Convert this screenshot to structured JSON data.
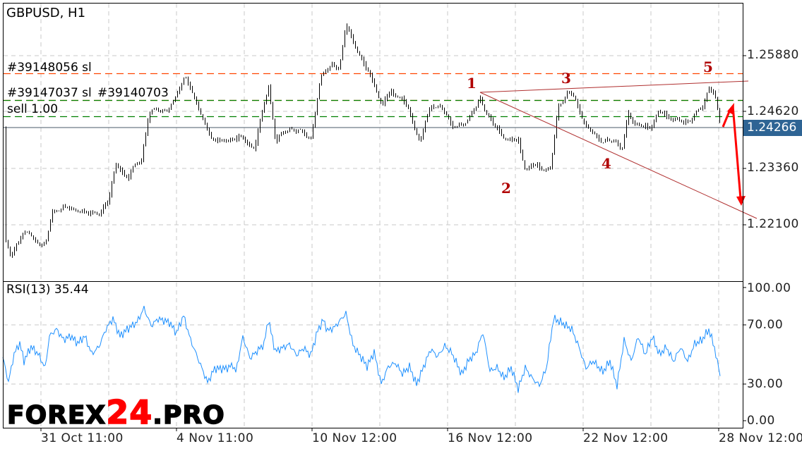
{
  "chart_data": [
    {
      "type": "candlestick",
      "title": "GBPUSD, H1",
      "symbol": "GBPUSD",
      "timeframe": "H1",
      "ylim": [
        1.21,
        1.27
      ],
      "y_ticks": [
        "1.25880",
        "1.24620",
        "1.23360",
        "1.22100"
      ],
      "x_ticks": [
        "31 Oct 11:00",
        "4 Nov 11:00",
        "10 Nov 12:00",
        "16 Nov 12:00",
        "22 Nov 12:00",
        "28 Nov 12:00"
      ],
      "current_price": "1.24266",
      "grid": true,
      "close_path": [
        [
          2,
          1.2169
        ],
        [
          5,
          1.2138
        ],
        [
          13,
          1.2193
        ],
        [
          20,
          1.2185
        ],
        [
          30,
          1.2162
        ],
        [
          35,
          1.224
        ],
        [
          43,
          1.2248
        ],
        [
          53,
          1.224
        ],
        [
          68,
          1.2232
        ],
        [
          75,
          1.2271
        ],
        [
          80,
          1.2342
        ],
        [
          88,
          1.2318
        ],
        [
          98,
          1.2357
        ],
        [
          103,
          1.2459
        ],
        [
          113,
          1.2467
        ],
        [
          120,
          1.2475
        ],
        [
          129,
          1.2545
        ],
        [
          135,
          1.249
        ],
        [
          143,
          1.2435
        ],
        [
          148,
          1.2396
        ],
        [
          158,
          1.2396
        ],
        [
          168,
          1.2404
        ],
        [
          178,
          1.2381
        ],
        [
          188,
          1.2522
        ],
        [
          193,
          1.2396
        ],
        [
          203,
          1.2428
        ],
        [
          218,
          1.2404
        ],
        [
          225,
          1.2537
        ],
        [
          233,
          1.2568
        ],
        [
          238,
          1.2553
        ],
        [
          243,
          1.2655
        ],
        [
          248,
          1.2615
        ],
        [
          255,
          1.2568
        ],
        [
          263,
          1.2522
        ],
        [
          268,
          1.2475
        ],
        [
          275,
          1.2506
        ],
        [
          283,
          1.249
        ],
        [
          290,
          1.2443
        ],
        [
          295,
          1.2396
        ],
        [
          303,
          1.2475
        ],
        [
          310,
          1.2475
        ],
        [
          318,
          1.2428
        ],
        [
          328,
          1.2435
        ],
        [
          338,
          1.249
        ],
        [
          343,
          1.2451
        ],
        [
          348,
          1.2428
        ],
        [
          358,
          1.2396
        ],
        [
          365,
          1.2396
        ],
        [
          370,
          1.2334
        ],
        [
          378,
          1.2342
        ],
        [
          388,
          1.2334
        ],
        [
          393,
          1.2475
        ],
        [
          400,
          1.2506
        ],
        [
          405,
          1.249
        ],
        [
          413,
          1.2428
        ],
        [
          423,
          1.2396
        ],
        [
          433,
          1.2396
        ],
        [
          438,
          1.2373
        ],
        [
          443,
          1.2459
        ],
        [
          448,
          1.2428
        ],
        [
          458,
          1.2428
        ],
        [
          465,
          1.2459
        ],
        [
          473,
          1.2451
        ],
        [
          480,
          1.2435
        ],
        [
          488,
          1.2451
        ],
        [
          495,
          1.2467
        ],
        [
          500,
          1.2522
        ],
        [
          504,
          1.2498
        ],
        [
          508,
          1.24266
        ]
      ],
      "orders": [
        {
          "label": "#39148056 sl",
          "price": 1.2546,
          "color": "#ff4500",
          "style": "dashed"
        },
        {
          "label": "#39147037 sl",
          "overlap_label": "#39140703",
          "price": 1.2487,
          "color": "#ff4500",
          "style": "dashed"
        },
        {
          "label": "",
          "price": 1.2487,
          "color": "#008000",
          "style": "dashed"
        },
        {
          "label": "sell 1.00",
          "price": 1.2451,
          "color": "#008000",
          "style": "dashed"
        }
      ],
      "wave_labels": [
        "1",
        "2",
        "3",
        "4",
        "5"
      ],
      "wave_color": "#b00000",
      "arrow_color": "#ff0000"
    },
    {
      "type": "line",
      "title": "RSI(13) 35.44",
      "indicator": "RSI",
      "period": 13,
      "last_value": "35.44",
      "ylim": [
        0,
        100
      ],
      "y_ticks": [
        "100.00",
        "70.00",
        "30.00",
        "0.00"
      ],
      "levels": [
        70,
        30
      ],
      "color": "#1e90ff",
      "values": [
        [
          0,
          46.7
        ],
        [
          4,
          30
        ],
        [
          8,
          49
        ],
        [
          12,
          56.2
        ],
        [
          15,
          44.3
        ],
        [
          20,
          53.8
        ],
        [
          25,
          49
        ],
        [
          30,
          39.5
        ],
        [
          33,
          61
        ],
        [
          38,
          65.7
        ],
        [
          43,
          58.6
        ],
        [
          48,
          61
        ],
        [
          53,
          56.2
        ],
        [
          58,
          61
        ],
        [
          63,
          49
        ],
        [
          68,
          53.8
        ],
        [
          73,
          65.7
        ],
        [
          78,
          72.9
        ],
        [
          83,
          61
        ],
        [
          88,
          65.7
        ],
        [
          95,
          70.5
        ],
        [
          100,
          80
        ],
        [
          105,
          68.1
        ],
        [
          110,
          72.9
        ],
        [
          118,
          70.5
        ],
        [
          123,
          63.3
        ],
        [
          128,
          75.2
        ],
        [
          133,
          58.6
        ],
        [
          138,
          46.7
        ],
        [
          145,
          30
        ],
        [
          150,
          39.5
        ],
        [
          158,
          39.5
        ],
        [
          163,
          41.9
        ],
        [
          165,
          37.1
        ],
        [
          170,
          61
        ],
        [
          175,
          46.7
        ],
        [
          180,
          51.4
        ],
        [
          185,
          56.2
        ],
        [
          188,
          72.9
        ],
        [
          193,
          51.4
        ],
        [
          198,
          53.8
        ],
        [
          203,
          56.2
        ],
        [
          208,
          49
        ],
        [
          213,
          53.8
        ],
        [
          218,
          49
        ],
        [
          223,
          65.7
        ],
        [
          227,
          72.9
        ],
        [
          230,
          65.7
        ],
        [
          235,
          68.1
        ],
        [
          243,
          77.6
        ],
        [
          248,
          56.2
        ],
        [
          253,
          49
        ],
        [
          258,
          41.9
        ],
        [
          263,
          51.4
        ],
        [
          268,
          30
        ],
        [
          273,
          41.9
        ],
        [
          278,
          44.3
        ],
        [
          283,
          37.1
        ],
        [
          288,
          41.9
        ],
        [
          293,
          30
        ],
        [
          298,
          41.9
        ],
        [
          303,
          53.8
        ],
        [
          308,
          49
        ],
        [
          313,
          56.2
        ],
        [
          318,
          51.4
        ],
        [
          325,
          37.1
        ],
        [
          330,
          46.7
        ],
        [
          335,
          51.4
        ],
        [
          340,
          65.7
        ],
        [
          345,
          39.5
        ],
        [
          350,
          41.9
        ],
        [
          355,
          34.8
        ],
        [
          360,
          41.9
        ],
        [
          365,
          27.6
        ],
        [
          370,
          41.9
        ],
        [
          375,
          34.8
        ],
        [
          380,
          30
        ],
        [
          385,
          41.9
        ],
        [
          390,
          75.2
        ],
        [
          395,
          72.9
        ],
        [
          403,
          68.1
        ],
        [
          408,
          56.2
        ],
        [
          413,
          41.9
        ],
        [
          418,
          46.7
        ],
        [
          425,
          39.5
        ],
        [
          430,
          46.7
        ],
        [
          435,
          30
        ],
        [
          440,
          61
        ],
        [
          445,
          46.7
        ],
        [
          450,
          63.3
        ],
        [
          455,
          51.4
        ],
        [
          460,
          63.3
        ],
        [
          465,
          51.4
        ],
        [
          470,
          56.2
        ],
        [
          475,
          46.7
        ],
        [
          480,
          56.2
        ],
        [
          485,
          46.7
        ],
        [
          490,
          58.6
        ],
        [
          495,
          61
        ],
        [
          500,
          68.1
        ],
        [
          504,
          56.2
        ],
        [
          508,
          35.44
        ]
      ]
    }
  ],
  "logo": {
    "part1": "FOREX",
    "part2": "24",
    "part3": ".PRO"
  }
}
